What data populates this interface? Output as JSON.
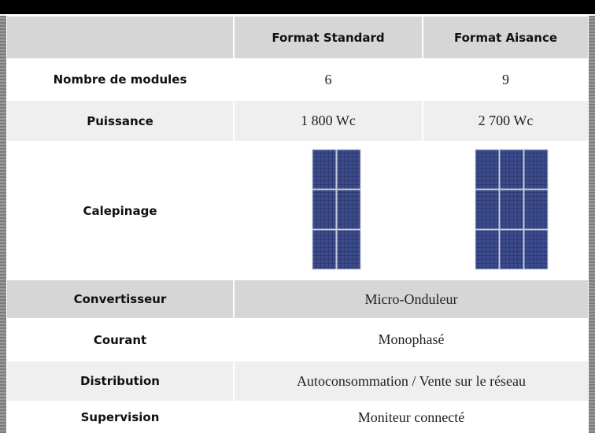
{
  "table": {
    "columns": [
      "Format Standard",
      "Format Aisance"
    ],
    "rows": [
      {
        "label": "Nombre de modules",
        "cells": [
          "6",
          "9"
        ]
      },
      {
        "label": "Puissance",
        "cells": [
          "1 800 Wc",
          "2 700 Wc"
        ]
      },
      {
        "label": "Calepinage"
      },
      {
        "label": "Convertisseur",
        "value": "Micro-Onduleur"
      },
      {
        "label": "Courant",
        "value": "Monophasé"
      },
      {
        "label": "Distribution",
        "value": "Autoconsommation / Vente sur le réseau"
      },
      {
        "label": "Supervision",
        "value": "Moniteur connecté"
      }
    ]
  }
}
